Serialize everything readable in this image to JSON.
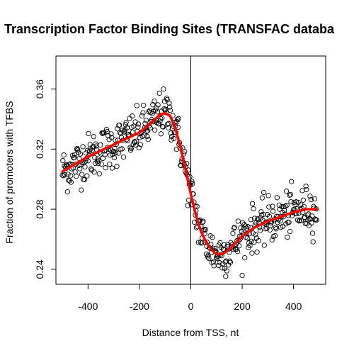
{
  "chart_data": {
    "type": "scatter",
    "title": "Transcription Factor Binding Sites (TRANSFAC databa",
    "xlabel": "Distance from TSS, nt",
    "ylabel": "Fraction of promoters with TFBS",
    "xlim": [
      -525,
      525
    ],
    "ylim": [
      0.23,
      0.382
    ],
    "x_ticks": [
      -400,
      -200,
      0,
      200,
      400
    ],
    "x_tick_labels": [
      "-400",
      "-200",
      "0",
      "200",
      "400"
    ],
    "y_ticks": [
      0.24,
      0.28,
      0.32,
      0.36
    ],
    "y_tick_labels": [
      "0.24",
      "0.28",
      "0.32",
      "0.36"
    ],
    "vertical_reference_line_x": 0,
    "grid": false,
    "legend": "none",
    "point_style": "open-circle",
    "point_color": "#000000",
    "curve_color": "#ff0000",
    "series": [
      {
        "kind": "points",
        "x_range": [
          -500,
          490
        ],
        "x_step": 2,
        "scatter_sd": 0.0075,
        "note_trend": "points scatter around the smoothed curve"
      },
      {
        "kind": "smooth-line",
        "x": [
          -500,
          -450,
          -400,
          -350,
          -300,
          -250,
          -200,
          -150,
          -120,
          -100,
          -80,
          -60,
          -40,
          -20,
          0,
          20,
          40,
          60,
          80,
          100,
          120,
          140,
          160,
          200,
          250,
          300,
          350,
          400,
          450,
          490
        ],
        "y": [
          0.305,
          0.31,
          0.315,
          0.319,
          0.323,
          0.327,
          0.331,
          0.338,
          0.343,
          0.344,
          0.342,
          0.334,
          0.321,
          0.306,
          0.29,
          0.276,
          0.265,
          0.258,
          0.253,
          0.25,
          0.25,
          0.252,
          0.255,
          0.262,
          0.268,
          0.272,
          0.275,
          0.278,
          0.28,
          0.28
        ]
      }
    ]
  }
}
